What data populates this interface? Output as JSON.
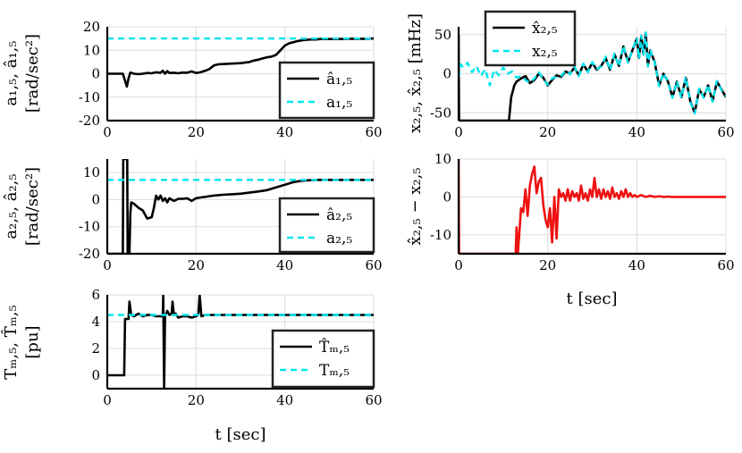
{
  "chart_data": [
    {
      "id": "p1",
      "type": "line",
      "x_range": [
        0,
        60
      ],
      "ylim": [
        -20,
        20
      ],
      "xticks": [
        0,
        20,
        40,
        60
      ],
      "yticks": [
        -20,
        -10,
        0,
        10,
        20
      ],
      "ylabel_line1": "a₁,₅, â₁,₅",
      "ylabel_line2": "[rad/sec²]",
      "xlabel": "",
      "legend_position": "bottom-right",
      "grid": true,
      "series": [
        {
          "name": "â₁,₅",
          "color": "#000000",
          "style": "solid",
          "x": [
            0,
            3.5,
            4,
            4.4,
            4.8,
            5.2,
            6,
            7,
            8,
            9,
            10,
            11,
            12,
            12.5,
            13,
            13.5,
            14,
            15,
            16,
            17,
            18,
            19,
            20,
            21,
            22,
            23,
            24,
            25,
            26,
            28,
            30,
            32,
            33,
            34,
            35,
            36,
            37,
            38,
            39,
            40,
            41,
            42,
            43,
            44,
            45,
            46,
            47,
            48,
            50,
            52,
            54,
            56,
            58,
            60
          ],
          "y": [
            0,
            0,
            -3,
            -5.5,
            -2,
            0.5,
            0,
            -0.2,
            0,
            0.3,
            0.2,
            0.6,
            0.4,
            1.3,
            0,
            1.1,
            0.3,
            0.4,
            0.2,
            0.5,
            0.4,
            1,
            0.3,
            0.6,
            1.2,
            2,
            3.5,
            4,
            4.1,
            4.3,
            4.5,
            5,
            5.6,
            6,
            6.5,
            7,
            7.3,
            8,
            10,
            12,
            13,
            13.5,
            14,
            14.3,
            14.5,
            14.6,
            14.6,
            14.8,
            14.8,
            14.8,
            14.9,
            14.9,
            14.9,
            15
          ]
        },
        {
          "name": "a₁,₅",
          "color": "#00e5ee",
          "style": "dashed",
          "x": [
            0,
            60
          ],
          "y": [
            15,
            15
          ]
        }
      ]
    },
    {
      "id": "p2",
      "type": "line",
      "x_range": [
        0,
        60
      ],
      "ylim": [
        -20,
        15
      ],
      "xticks": [
        0,
        20,
        40,
        60
      ],
      "yticks": [
        -20,
        -10,
        0,
        10
      ],
      "ylabel_line1": "a₂,₅, â₂,₅",
      "ylabel_line2": "[rad/sec²]",
      "xlabel": "",
      "legend_position": "bottom-right",
      "grid": true,
      "series": [
        {
          "name": "â₂,₅",
          "color": "#000000",
          "style": "solid",
          "x": [
            0,
            3.5,
            3.6,
            3.8,
            4.2,
            4.5,
            4.6,
            5.0,
            5.2,
            5.4,
            6,
            7,
            8,
            9,
            10,
            10.5,
            11,
            11.5,
            12,
            12.5,
            13,
            13.5,
            14,
            15,
            16,
            17,
            18,
            19,
            20,
            21,
            22,
            24,
            26,
            28,
            30,
            32,
            34,
            36,
            38,
            40,
            42,
            44,
            46,
            48,
            50,
            55,
            60
          ],
          "y": [
            -20,
            -20,
            15,
            15,
            15,
            15,
            -20,
            -20,
            -5,
            -1,
            -1.5,
            -3,
            -4,
            -7,
            -6.5,
            -3,
            1.5,
            0,
            1.5,
            -0.5,
            0.5,
            -1,
            0.5,
            -0.5,
            0.3,
            0.3,
            0.5,
            -0.5,
            0.5,
            0.8,
            1,
            1.5,
            1.8,
            2,
            2.2,
            2.6,
            3,
            3.5,
            4.5,
            5.5,
            6.5,
            7,
            7.2,
            7.3,
            7.3,
            7.3,
            7.3
          ]
        },
        {
          "name": "a₂,₅",
          "color": "#00e5ee",
          "style": "dashed",
          "x": [
            0,
            60
          ],
          "y": [
            7.3,
            7.3
          ]
        }
      ]
    },
    {
      "id": "p3",
      "type": "line",
      "x_range": [
        0,
        60
      ],
      "ylim": [
        -1,
        6
      ],
      "xticks": [
        0,
        20,
        40,
        60
      ],
      "yticks": [
        0,
        2,
        4,
        6
      ],
      "ylabel_line1": "Tₘ,₅, T̂ₘ,₅",
      "ylabel_line2": "[pu]",
      "xlabel": "t [sec]",
      "legend_position": "bottom-right",
      "grid": true,
      "series": [
        {
          "name": "T̂ₘ,₅",
          "color": "#000000",
          "style": "solid",
          "x": [
            0,
            3.8,
            4,
            4.8,
            5,
            5.4,
            6,
            7,
            8,
            9,
            10,
            11,
            12.5,
            12.6,
            12.8,
            13,
            13.5,
            14,
            14.5,
            14.7,
            15,
            15.4,
            16,
            17,
            18,
            19,
            20,
            20.5,
            20.8,
            21.2,
            22,
            25,
            30,
            40,
            50,
            60
          ],
          "y": [
            0,
            0,
            4.2,
            4.2,
            5.5,
            4.5,
            4.4,
            4.6,
            4.4,
            4.5,
            4.5,
            4.4,
            4.4,
            6,
            -1,
            4.4,
            4.8,
            4.5,
            4.6,
            5.5,
            4.5,
            4.6,
            4.3,
            4.4,
            4.4,
            4.3,
            4.4,
            4.5,
            6,
            4.4,
            4.5,
            4.5,
            4.5,
            4.5,
            4.5,
            4.5
          ]
        },
        {
          "name": "Tₘ,₅",
          "color": "#00e5ee",
          "style": "dashed",
          "x": [
            0,
            60
          ],
          "y": [
            4.5,
            4.5
          ]
        }
      ]
    },
    {
      "id": "p4",
      "type": "line",
      "x_range": [
        0,
        60
      ],
      "ylim": [
        -60,
        60
      ],
      "xticks": [
        0,
        20,
        40,
        60
      ],
      "yticks": [
        -50,
        0,
        50
      ],
      "ylabel_line1": "x₂,₅, x̂₂,₅ [mHz]",
      "ylabel_line2": "",
      "xlabel": "",
      "legend_position": "top-left",
      "grid": true,
      "series": [
        {
          "name": "x̂₂,₅",
          "color": "#000000",
          "style": "solid",
          "x": [
            0,
            0.1,
            0.2,
            11.3,
            11.8,
            12.5,
            13,
            14,
            15,
            16,
            17,
            18,
            19,
            20,
            21,
            22,
            23,
            24,
            25,
            26,
            27,
            28,
            29,
            30,
            31,
            32,
            33,
            34,
            35,
            36,
            37,
            38,
            39,
            40,
            40.5,
            41,
            41.5,
            42,
            42.5,
            43,
            44,
            45,
            46,
            47,
            48,
            49,
            50,
            51,
            52,
            53,
            54,
            55,
            56,
            57,
            58,
            59,
            60
          ],
          "y": [
            50,
            -60,
            -60,
            -60,
            -30,
            -15,
            -10,
            -6,
            -3,
            -12,
            -8,
            0,
            -5,
            -15,
            -8,
            -2,
            -4,
            3,
            0,
            8,
            -2,
            12,
            3,
            14,
            5,
            10,
            20,
            5,
            25,
            10,
            35,
            15,
            30,
            45,
            20,
            48,
            25,
            52,
            10,
            30,
            15,
            -15,
            0,
            -10,
            -30,
            -10,
            -30,
            -5,
            -35,
            -50,
            -20,
            -30,
            -15,
            -35,
            -10,
            -20,
            -30
          ]
        },
        {
          "name": "x₂,₅",
          "color": "#00e5ee",
          "style": "dashed",
          "x": [
            0,
            0.5,
            1,
            2,
            3,
            4,
            5,
            6,
            7,
            8,
            9,
            10,
            11,
            12,
            13,
            14,
            15,
            16,
            17,
            18,
            19,
            20,
            21,
            22,
            23,
            24,
            25,
            26,
            27,
            28,
            29,
            30,
            31,
            32,
            33,
            34,
            35,
            36,
            37,
            38,
            39,
            40,
            40.5,
            41,
            41.5,
            42,
            42.5,
            43,
            44,
            45,
            46,
            47,
            48,
            49,
            50,
            51,
            52,
            53,
            54,
            55,
            56,
            57,
            58,
            59,
            60
          ],
          "y": [
            -5,
            12,
            8,
            14,
            2,
            10,
            -3,
            6,
            -15,
            5,
            -2,
            8,
            0,
            3,
            -5,
            -3,
            -8,
            -12,
            -6,
            2,
            -7,
            -14,
            -6,
            -4,
            -3,
            4,
            -1,
            9,
            -3,
            13,
            2,
            15,
            6,
            9,
            22,
            4,
            26,
            9,
            36,
            14,
            31,
            46,
            19,
            49,
            24,
            53,
            9,
            31,
            14,
            -16,
            1,
            -11,
            -31,
            -9,
            -31,
            -4,
            -36,
            -51,
            -19,
            -31,
            -14,
            -36,
            -9,
            -21,
            -29
          ]
        }
      ]
    },
    {
      "id": "p5",
      "type": "line",
      "x_range": [
        0,
        60
      ],
      "ylim": [
        -15,
        10
      ],
      "xticks": [
        0,
        20,
        40,
        60
      ],
      "yticks": [
        -10,
        0,
        10
      ],
      "ylabel_line1": "x̂₂,₅ − x₂,₅",
      "ylabel_line2": "",
      "xlabel": "t [sec]",
      "legend_position": "",
      "grid": true,
      "series": [
        {
          "name": "",
          "color": "#ee1111",
          "style": "solid",
          "x": [
            0,
            0.1,
            0.2,
            12.8,
            13,
            13.3,
            13.6,
            14,
            14.5,
            15,
            15.5,
            16,
            16.5,
            17,
            17.5,
            18,
            18.5,
            19,
            19.5,
            20,
            20.5,
            21,
            21.5,
            22,
            22.5,
            23,
            23.5,
            24,
            24.5,
            25,
            25.5,
            26,
            26.5,
            27,
            27.5,
            28,
            28.5,
            29,
            29.5,
            30,
            30.5,
            31,
            31.5,
            32,
            32.5,
            33,
            33.5,
            34,
            34.5,
            35,
            35.5,
            36,
            36.5,
            37,
            37.5,
            38,
            38.5,
            39,
            39.5,
            40,
            41,
            42,
            43,
            44,
            45,
            46,
            47,
            48,
            50,
            55,
            60
          ],
          "y": [
            10,
            -15,
            -15,
            -15,
            -8,
            -15,
            -10,
            -3,
            -4,
            2,
            -5,
            3,
            6,
            8,
            1,
            4,
            5,
            -2,
            -6,
            -8,
            -3,
            -12,
            0,
            -11,
            2,
            0,
            1,
            -1,
            2,
            -1,
            1.5,
            0,
            1,
            -1,
            3,
            -0.5,
            1,
            -1,
            2,
            0,
            5,
            0,
            2,
            -0.5,
            2,
            0,
            1.5,
            -0.5,
            2.5,
            0,
            1,
            -0.5,
            1.5,
            0,
            2,
            0,
            1,
            0,
            0.5,
            0,
            0.5,
            0,
            0.3,
            0,
            0.2,
            0,
            0.1,
            0,
            0,
            0,
            0
          ]
        }
      ]
    }
  ]
}
